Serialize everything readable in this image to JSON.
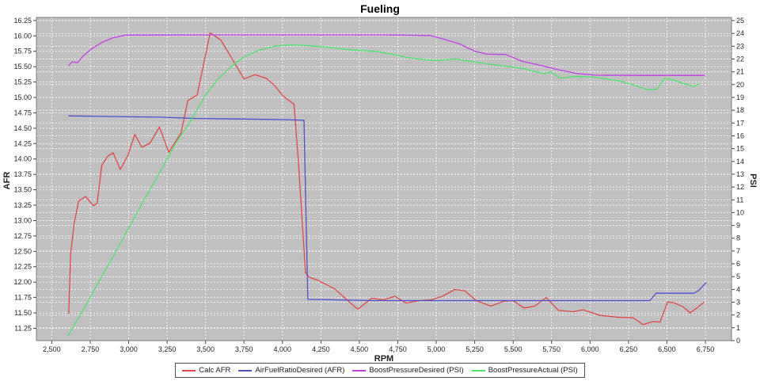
{
  "chart_data": {
    "type": "line",
    "title": "Fueling",
    "xlabel": "RPM",
    "ylabel_left": "AFR",
    "ylabel_right": "PSI",
    "plot_bg": "#c0c0c0",
    "grid_color": "#ffffff",
    "frame_color": "#7a7a7a",
    "tick_color": "#444444",
    "label_color": "#222222",
    "x_axis": {
      "min": 2400,
      "max": 6920
    },
    "y_left_axis": {
      "min": 11.05,
      "max": 16.3
    },
    "y_right_axis": {
      "min": 0,
      "max": 25.25
    },
    "x_tick_labels": [
      "2,500",
      "2,750",
      "3,000",
      "3,250",
      "3,500",
      "3,750",
      "4,000",
      "4,250",
      "4,500",
      "4,750",
      "5,000",
      "5,250",
      "5,500",
      "5,750",
      "6,000",
      "6,250",
      "6,500",
      "6,750"
    ],
    "y_left_tick_labels": [
      "11.25",
      "11.50",
      "11.75",
      "12.00",
      "12.25",
      "12.50",
      "12.75",
      "13.00",
      "13.25",
      "13.50",
      "13.75",
      "14.00",
      "14.25",
      "14.50",
      "14.75",
      "15.00",
      "15.25",
      "15.50",
      "15.75",
      "16.00",
      "16.25"
    ],
    "y_right_tick_labels": [
      "0",
      "1",
      "2",
      "3",
      "4",
      "5",
      "6",
      "7",
      "8",
      "9",
      "10",
      "11",
      "12",
      "13",
      "14",
      "15",
      "16",
      "17",
      "18",
      "19",
      "20",
      "21",
      "22",
      "23",
      "24",
      "25"
    ],
    "legend_position": "bottom",
    "grid": true,
    "series": [
      {
        "name": "Calc AFR",
        "color": "#e04848",
        "axis": "left",
        "points": [
          [
            2610,
            11.49
          ],
          [
            2622,
            12.45
          ],
          [
            2645,
            12.95
          ],
          [
            2675,
            13.32
          ],
          [
            2720,
            13.39
          ],
          [
            2770,
            13.24
          ],
          [
            2795,
            13.28
          ],
          [
            2825,
            13.9
          ],
          [
            2865,
            14.05
          ],
          [
            2900,
            14.1
          ],
          [
            2945,
            13.83
          ],
          [
            2995,
            14.06
          ],
          [
            3040,
            14.4
          ],
          [
            3085,
            14.19
          ],
          [
            3140,
            14.26
          ],
          [
            3200,
            14.52
          ],
          [
            3260,
            14.11
          ],
          [
            3340,
            14.42
          ],
          [
            3385,
            14.95
          ],
          [
            3445,
            15.04
          ],
          [
            3530,
            16.05
          ],
          [
            3600,
            15.93
          ],
          [
            3715,
            15.45
          ],
          [
            3750,
            15.3
          ],
          [
            3820,
            15.37
          ],
          [
            3895,
            15.31
          ],
          [
            3950,
            15.19
          ],
          [
            4005,
            15.02
          ],
          [
            4075,
            14.89
          ],
          [
            4105,
            13.9
          ],
          [
            4150,
            12.15
          ],
          [
            4175,
            12.08
          ],
          [
            4230,
            12.03
          ],
          [
            4340,
            11.89
          ],
          [
            4425,
            11.7
          ],
          [
            4490,
            11.56
          ],
          [
            4580,
            11.74
          ],
          [
            4655,
            11.71
          ],
          [
            4730,
            11.77
          ],
          [
            4805,
            11.66
          ],
          [
            4890,
            11.7
          ],
          [
            4965,
            11.71
          ],
          [
            5040,
            11.77
          ],
          [
            5120,
            11.88
          ],
          [
            5185,
            11.86
          ],
          [
            5260,
            11.7
          ],
          [
            5355,
            11.61
          ],
          [
            5440,
            11.69
          ],
          [
            5500,
            11.7
          ],
          [
            5570,
            11.58
          ],
          [
            5640,
            11.61
          ],
          [
            5715,
            11.75
          ],
          [
            5795,
            11.54
          ],
          [
            5890,
            11.52
          ],
          [
            5955,
            11.55
          ],
          [
            6065,
            11.46
          ],
          [
            6180,
            11.43
          ],
          [
            6280,
            11.42
          ],
          [
            6345,
            11.31
          ],
          [
            6410,
            11.36
          ],
          [
            6455,
            11.35
          ],
          [
            6505,
            11.68
          ],
          [
            6550,
            11.66
          ],
          [
            6605,
            11.6
          ],
          [
            6650,
            11.5
          ],
          [
            6705,
            11.6
          ],
          [
            6740,
            11.67
          ]
        ]
      },
      {
        "name": "AirFuelRatioDesired (AFR)",
        "color": "#5050d0",
        "axis": "left",
        "points": [
          [
            2610,
            14.7
          ],
          [
            2900,
            14.69
          ],
          [
            3200,
            14.68
          ],
          [
            3430,
            14.66
          ],
          [
            3700,
            14.65
          ],
          [
            4000,
            14.64
          ],
          [
            4140,
            14.63
          ],
          [
            4165,
            11.72
          ],
          [
            4600,
            11.7
          ],
          [
            5100,
            11.7
          ],
          [
            5600,
            11.7
          ],
          [
            6000,
            11.7
          ],
          [
            6390,
            11.7
          ],
          [
            6430,
            11.82
          ],
          [
            6560,
            11.82
          ],
          [
            6675,
            11.82
          ],
          [
            6705,
            11.86
          ],
          [
            6755,
            11.99
          ]
        ]
      },
      {
        "name": "BoostPressureDesired (PSI)",
        "color": "#c040e8",
        "axis": "right",
        "points": [
          [
            2610,
            21.47
          ],
          [
            2632,
            21.78
          ],
          [
            2668,
            21.72
          ],
          [
            2705,
            22.25
          ],
          [
            2765,
            22.85
          ],
          [
            2830,
            23.32
          ],
          [
            2895,
            23.65
          ],
          [
            2980,
            23.87
          ],
          [
            3500,
            23.88
          ],
          [
            4200,
            23.88
          ],
          [
            4700,
            23.88
          ],
          [
            4960,
            23.84
          ],
          [
            5050,
            23.55
          ],
          [
            5150,
            23.18
          ],
          [
            5250,
            22.62
          ],
          [
            5330,
            22.38
          ],
          [
            5450,
            22.36
          ],
          [
            5560,
            21.82
          ],
          [
            5680,
            21.5
          ],
          [
            5800,
            21.15
          ],
          [
            5910,
            20.88
          ],
          [
            6030,
            20.74
          ],
          [
            6300,
            20.72
          ],
          [
            6550,
            20.72
          ],
          [
            6745,
            20.72
          ]
        ]
      },
      {
        "name": "BoostPressureActual (PSI)",
        "color": "#4de36b",
        "axis": "right",
        "points": [
          [
            2605,
            0.4
          ],
          [
            2700,
            2.3
          ],
          [
            2800,
            4.5
          ],
          [
            2900,
            6.6
          ],
          [
            3000,
            8.8
          ],
          [
            3100,
            11.0
          ],
          [
            3200,
            13.1
          ],
          [
            3300,
            15.3
          ],
          [
            3400,
            17.1
          ],
          [
            3500,
            19.2
          ],
          [
            3585,
            20.5
          ],
          [
            3665,
            21.4
          ],
          [
            3755,
            22.2
          ],
          [
            3855,
            22.72
          ],
          [
            3960,
            23.02
          ],
          [
            4055,
            23.1
          ],
          [
            4160,
            23.05
          ],
          [
            4310,
            22.9
          ],
          [
            4460,
            22.7
          ],
          [
            4610,
            22.6
          ],
          [
            4710,
            22.38
          ],
          [
            4810,
            22.12
          ],
          [
            4910,
            21.95
          ],
          [
            5010,
            21.9
          ],
          [
            5130,
            22.0
          ],
          [
            5260,
            21.75
          ],
          [
            5410,
            21.5
          ],
          [
            5560,
            21.28
          ],
          [
            5700,
            20.85
          ],
          [
            5745,
            21.0
          ],
          [
            5805,
            20.5
          ],
          [
            5915,
            20.65
          ],
          [
            6035,
            20.58
          ],
          [
            6180,
            20.3
          ],
          [
            6275,
            20.0
          ],
          [
            6370,
            19.6
          ],
          [
            6435,
            19.65
          ],
          [
            6485,
            20.5
          ],
          [
            6555,
            20.3
          ],
          [
            6635,
            20.0
          ],
          [
            6675,
            19.85
          ],
          [
            6710,
            20.05
          ]
        ]
      }
    ]
  }
}
